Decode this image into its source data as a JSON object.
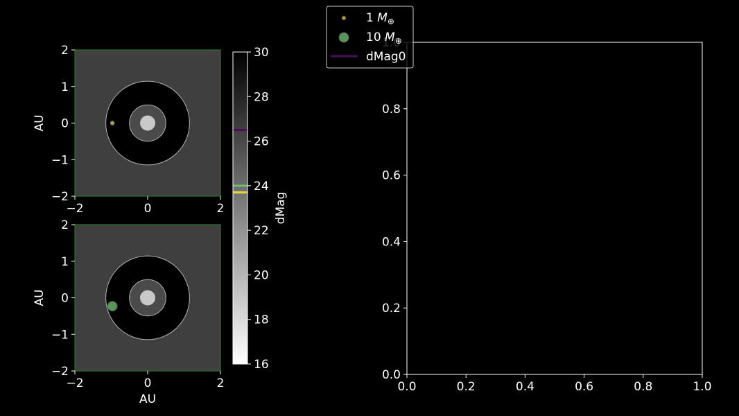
{
  "chart_data": [
    {
      "type": "scatter",
      "panel": "top-left",
      "xlabel": "",
      "ylabel": "AU",
      "xlim": [
        -2,
        2
      ],
      "ylim": [
        -2,
        2
      ],
      "xticks": [
        "−2",
        "0",
        "2"
      ],
      "yticks": [
        "2",
        "1",
        "0",
        "−1",
        "−2"
      ],
      "background_color": "#3f3f3f",
      "star": {
        "x": 0,
        "y": 0,
        "color": "#c8c8c8"
      },
      "rings": [
        {
          "radius": 1.15,
          "fill": "#000000",
          "stroke": "#b4b4b4"
        },
        {
          "radius": 0.5,
          "fill": "#4a4a4a",
          "stroke": "#b4b4b4"
        }
      ],
      "planet": {
        "x": -0.97,
        "y": 0.0,
        "size": "small",
        "color": "#d8c94a"
      }
    },
    {
      "type": "scatter",
      "panel": "bottom-left",
      "xlabel": "AU",
      "ylabel": "AU",
      "xlim": [
        -2,
        2
      ],
      "ylim": [
        -2,
        2
      ],
      "xticks": [
        "−2",
        "0",
        "2"
      ],
      "yticks": [
        "2",
        "1",
        "0",
        "−1",
        "−2"
      ],
      "background_color": "#3f3f3f",
      "star": {
        "x": 0,
        "y": 0,
        "color": "#c8c8c8"
      },
      "rings": [
        {
          "radius": 1.15,
          "fill": "#000000",
          "stroke": "#b4b4b4"
        },
        {
          "radius": 0.5,
          "fill": "#4a4a4a",
          "stroke": "#b4b4b4"
        }
      ],
      "planet": {
        "x": -0.97,
        "y": -0.23,
        "size": "large",
        "color": "#6dbb72"
      }
    },
    {
      "type": "heatmap",
      "panel": "colorbar",
      "label": "dMag",
      "range": [
        16,
        30
      ],
      "ticks": [
        30,
        28,
        26,
        24,
        22,
        20,
        18,
        16
      ],
      "colormap": "white-to-black",
      "markers": [
        {
          "value": 26.5,
          "color": "#4b0f5e"
        },
        {
          "value": 24.0,
          "color": "#6dbb72"
        },
        {
          "value": 23.7,
          "color": "#e8d93a"
        }
      ]
    },
    {
      "type": "line",
      "panel": "right",
      "xlim": [
        0,
        1
      ],
      "ylim": [
        0,
        1
      ],
      "xticks": [
        "0.0",
        "0.2",
        "0.4",
        "0.6",
        "0.8",
        "1.0"
      ],
      "yticks": [
        "0.0",
        "0.2",
        "0.4",
        "0.6",
        "0.8",
        "1.0"
      ],
      "series": []
    }
  ],
  "legend": {
    "placement": "top-center",
    "entries": [
      {
        "label_prefix": "1 ",
        "label_m": "M",
        "label_sub": "⊕",
        "marker": "small-circle",
        "color": "#d8c94a"
      },
      {
        "label_prefix": "10 ",
        "label_m": "M",
        "label_sub": "⊕",
        "marker": "large-circle",
        "color": "#6dbb72"
      },
      {
        "label": "dMag0",
        "marker": "line",
        "color": "#4b0f5e"
      }
    ]
  }
}
